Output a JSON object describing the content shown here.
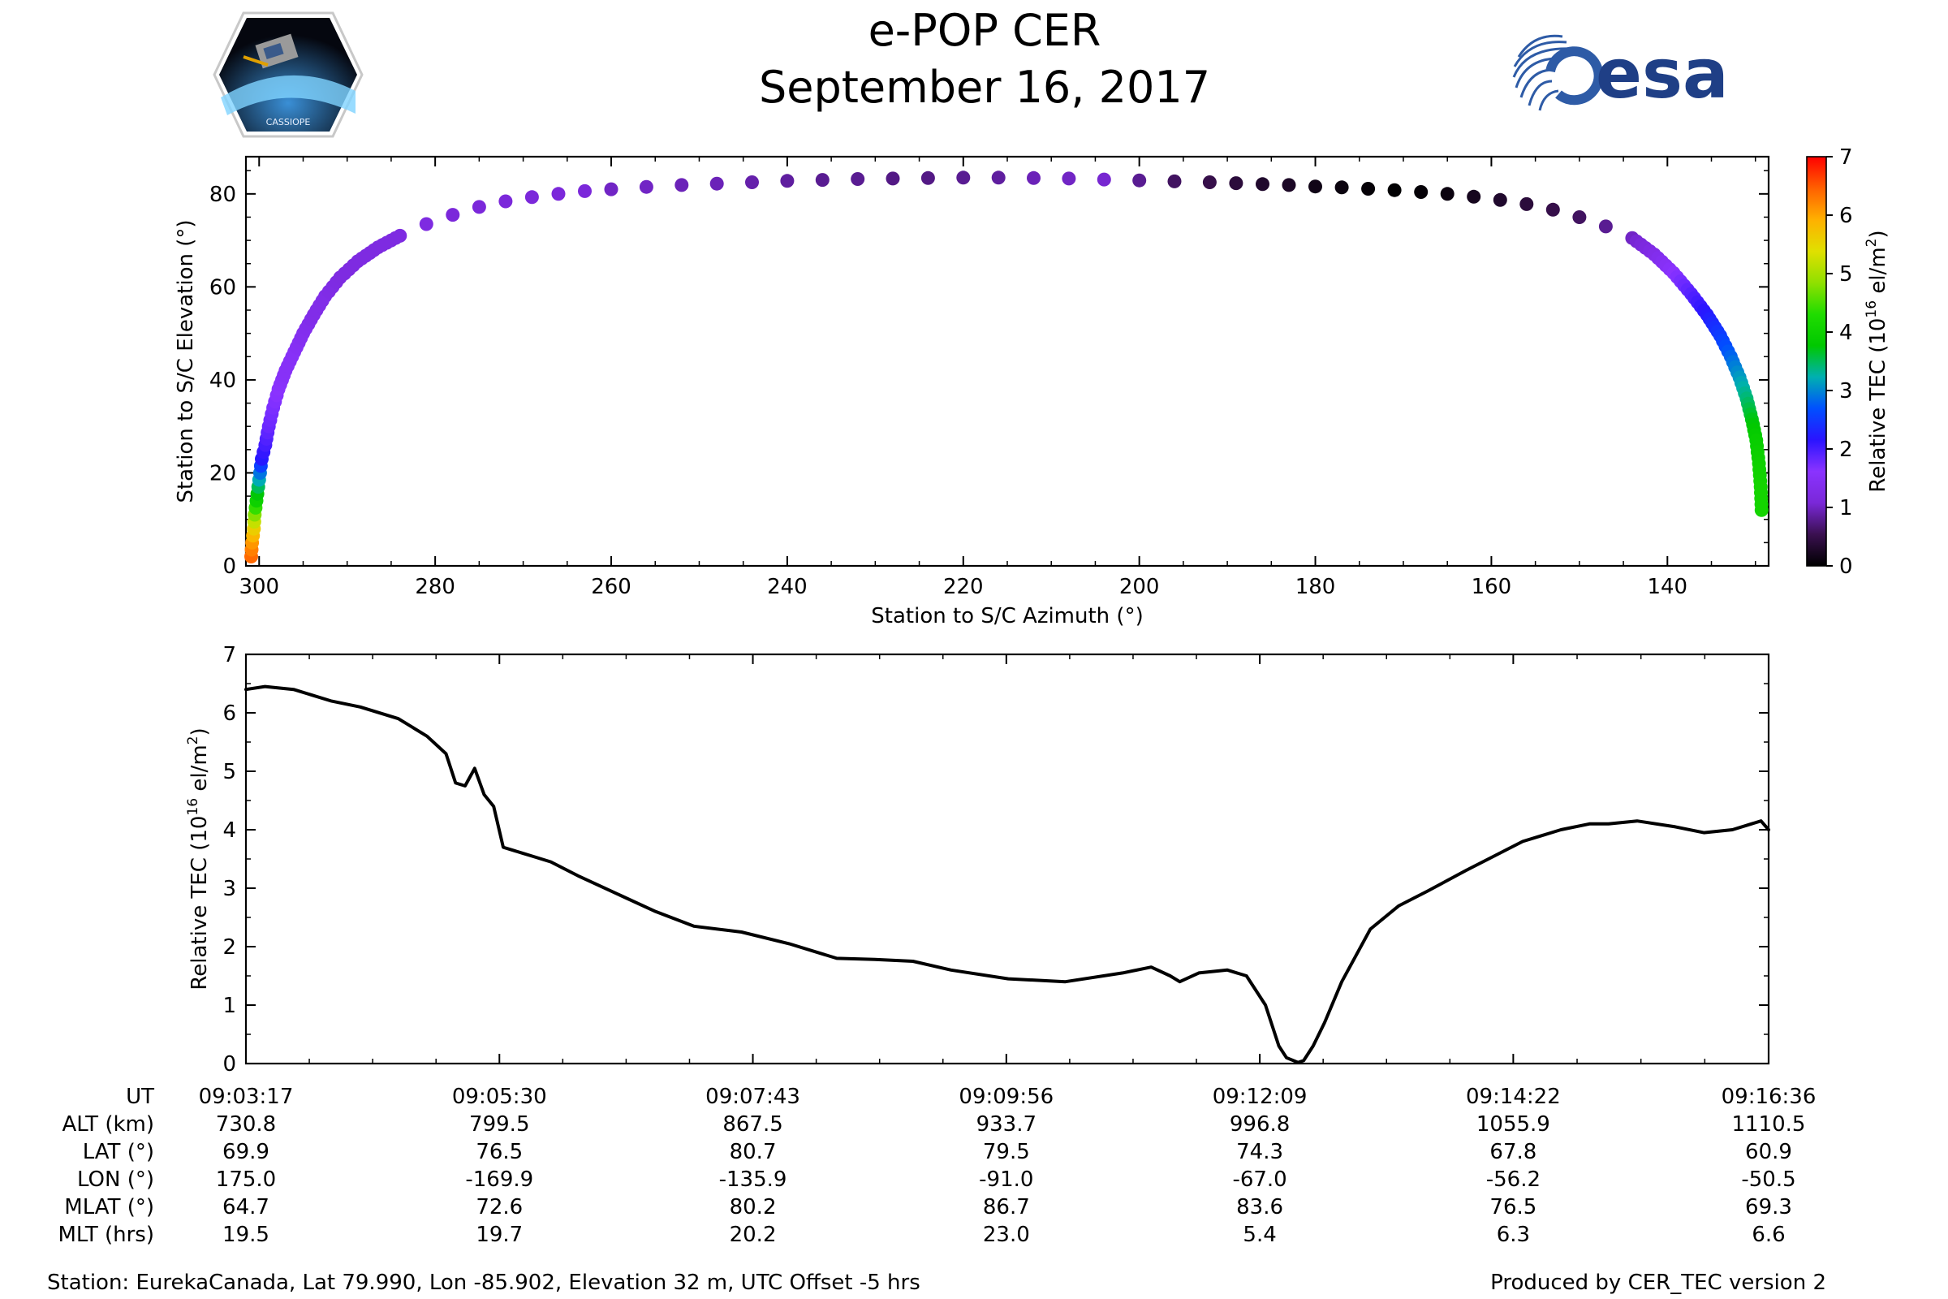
{
  "header": {
    "title_line1": "e-POP CER",
    "title_line2": "September 16, 2017",
    "left_logo_text": "CASSIOPE",
    "right_logo_text": "esa"
  },
  "chart_data": [
    {
      "type": "scatter",
      "name": "azimuth-elevation",
      "xlabel": "Station to S/C Azimuth (°)",
      "ylabel": "Station to S/C Elevation (°)",
      "xlim": [
        301.5,
        128.5
      ],
      "ylim": [
        0,
        88
      ],
      "xticks": [
        300,
        280,
        260,
        240,
        220,
        200,
        180,
        160,
        140
      ],
      "yticks": [
        0,
        20,
        40,
        60,
        80
      ],
      "colorbar": {
        "label_prefix": "Relative TEC (10",
        "label_exp": "16",
        "label_suffix": " el/m",
        "label_sq": "2",
        "label_end": ")",
        "min": 0,
        "max": 7,
        "ticks": [
          0,
          1,
          2,
          3,
          4,
          5,
          6,
          7
        ],
        "colormap": [
          "#000000",
          "#3a1050",
          "#7a28d8",
          "#8a33ff",
          "#2a14ff",
          "#0050ff",
          "#00b0b0",
          "#00c800",
          "#20dc00",
          "#90e000",
          "#e0e000",
          "#ffb000",
          "#ff6000",
          "#ff0000"
        ]
      },
      "points": [
        [
          300.9,
          2,
          6.4
        ],
        [
          300.8,
          5,
          6.1
        ],
        [
          300.6,
          8,
          5.6
        ],
        [
          300.5,
          11,
          4.8
        ],
        [
          300.3,
          14,
          4.0
        ],
        [
          300.1,
          17,
          3.5
        ],
        [
          299.9,
          20,
          2.9
        ],
        [
          299.7,
          23,
          2.2
        ],
        [
          299.3,
          26,
          2.0
        ],
        [
          298.9,
          30,
          1.8
        ],
        [
          298.4,
          34,
          1.7
        ],
        [
          297.8,
          38,
          1.6
        ],
        [
          297.0,
          42,
          1.5
        ],
        [
          296.0,
          46,
          1.5
        ],
        [
          295.0,
          50,
          1.4
        ],
        [
          293.8,
          54,
          1.3
        ],
        [
          292.5,
          58,
          1.3
        ],
        [
          290.8,
          62,
          1.2
        ],
        [
          288.8,
          65.5,
          1.2
        ],
        [
          286.5,
          68.5,
          1.2
        ],
        [
          284.0,
          71,
          1.2
        ],
        [
          281.0,
          73.5,
          1.2
        ],
        [
          278.0,
          75.5,
          1.1
        ],
        [
          275.0,
          77.2,
          1.1
        ],
        [
          272.0,
          78.4,
          1.1
        ],
        [
          269.0,
          79.3,
          1.1
        ],
        [
          266.0,
          80.0,
          1.1
        ],
        [
          263.0,
          80.6,
          1.1
        ],
        [
          260.0,
          81.0,
          1.0
        ],
        [
          256.0,
          81.5,
          1.0
        ],
        [
          252.0,
          81.9,
          0.95
        ],
        [
          248.0,
          82.2,
          0.95
        ],
        [
          244.0,
          82.5,
          0.9
        ],
        [
          240.0,
          82.8,
          0.85
        ],
        [
          236.0,
          83.0,
          0.8
        ],
        [
          232.0,
          83.2,
          0.8
        ],
        [
          228.0,
          83.3,
          0.75
        ],
        [
          224.0,
          83.4,
          0.75
        ],
        [
          220.0,
          83.5,
          0.8
        ],
        [
          216.0,
          83.5,
          0.85
        ],
        [
          212.0,
          83.4,
          0.95
        ],
        [
          208.0,
          83.3,
          1.0
        ],
        [
          204.0,
          83.1,
          1.05
        ],
        [
          200.0,
          82.9,
          0.8
        ],
        [
          196.0,
          82.7,
          0.6
        ],
        [
          192.0,
          82.5,
          0.5
        ],
        [
          189.0,
          82.3,
          0.4
        ],
        [
          186.0,
          82.1,
          0.3
        ],
        [
          183.0,
          81.9,
          0.25
        ],
        [
          180.0,
          81.6,
          0.15
        ],
        [
          177.0,
          81.4,
          0.1
        ],
        [
          174.0,
          81.1,
          0.05
        ],
        [
          171.0,
          80.8,
          0.02
        ],
        [
          168.0,
          80.4,
          0.05
        ],
        [
          165.0,
          80.0,
          0.1
        ],
        [
          162.0,
          79.4,
          0.2
        ],
        [
          159.0,
          78.7,
          0.3
        ],
        [
          156.0,
          77.8,
          0.4
        ],
        [
          153.0,
          76.6,
          0.5
        ],
        [
          150.0,
          75.0,
          0.6
        ],
        [
          147.0,
          73.0,
          0.8
        ],
        [
          144.0,
          70.5,
          1.0
        ],
        [
          141.5,
          67.0,
          1.3
        ],
        [
          139.3,
          63.0,
          1.6
        ],
        [
          137.3,
          58.5,
          1.9
        ],
        [
          135.5,
          54.0,
          2.2
        ],
        [
          134.0,
          49.5,
          2.5
        ],
        [
          132.8,
          45.0,
          2.8
        ],
        [
          131.8,
          40.5,
          3.1
        ],
        [
          131.0,
          36.0,
          3.4
        ],
        [
          130.4,
          31.5,
          3.7
        ],
        [
          129.9,
          27.0,
          3.9
        ],
        [
          129.6,
          22.0,
          4.0
        ],
        [
          129.4,
          17.0,
          4.1
        ],
        [
          129.3,
          12.0,
          4.1
        ]
      ]
    },
    {
      "type": "line",
      "name": "relative-tec-time-series",
      "xlabel": "",
      "ylabel_prefix": "Relative TEC (10",
      "ylabel_exp": "16",
      "ylabel_suffix": " el/m",
      "ylabel_sq": "2",
      "ylabel_end": ")",
      "x_unit": "seconds since 09:03:17",
      "xlim": [
        0,
        799
      ],
      "ylim": [
        0,
        7
      ],
      "yticks": [
        0,
        1,
        2,
        3,
        4,
        5,
        6,
        7
      ],
      "xticks": [
        0,
        133,
        266,
        399,
        532,
        665,
        799
      ],
      "x": [
        0,
        10,
        25,
        45,
        60,
        80,
        95,
        105,
        110,
        115,
        120,
        125,
        130,
        135,
        140,
        145,
        150,
        160,
        175,
        195,
        215,
        235,
        260,
        285,
        300,
        310,
        330,
        350,
        370,
        400,
        430,
        460,
        475,
        485,
        490,
        500,
        515,
        525,
        535,
        542,
        546,
        552,
        555,
        560,
        566,
        575,
        590,
        605,
        620,
        640,
        655,
        670,
        690,
        705,
        715,
        730,
        750,
        765,
        780,
        795,
        799
      ],
      "y": [
        6.4,
        6.45,
        6.4,
        6.2,
        6.1,
        5.9,
        5.6,
        5.3,
        4.8,
        4.75,
        5.05,
        4.6,
        4.4,
        3.7,
        3.65,
        3.6,
        3.55,
        3.45,
        3.2,
        2.9,
        2.6,
        2.35,
        2.25,
        2.05,
        1.9,
        1.8,
        1.78,
        1.75,
        1.6,
        1.45,
        1.4,
        1.55,
        1.65,
        1.5,
        1.4,
        1.55,
        1.6,
        1.5,
        1.0,
        0.3,
        0.1,
        0.02,
        0.05,
        0.3,
        0.7,
        1.4,
        2.3,
        2.7,
        2.95,
        3.3,
        3.55,
        3.8,
        4.0,
        4.1,
        4.1,
        4.15,
        4.05,
        3.95,
        4.0,
        4.15,
        4.0
      ]
    }
  ],
  "table": {
    "row_labels": [
      "UT",
      "ALT (km)",
      "LAT (°)",
      "LON (°)",
      "MLAT (°)",
      "MLT (hrs)"
    ],
    "columns": [
      [
        "09:03:17",
        "730.8",
        "69.9",
        "175.0",
        "64.7",
        "19.5"
      ],
      [
        "09:05:30",
        "799.5",
        "76.5",
        "-169.9",
        "72.6",
        "19.7"
      ],
      [
        "09:07:43",
        "867.5",
        "80.7",
        "-135.9",
        "80.2",
        "20.2"
      ],
      [
        "09:09:56",
        "933.7",
        "79.5",
        "-91.0",
        "86.7",
        "23.0"
      ],
      [
        "09:12:09",
        "996.8",
        "74.3",
        "-67.0",
        "83.6",
        "5.4"
      ],
      [
        "09:14:22",
        "1055.9",
        "67.8",
        "-56.2",
        "76.5",
        "6.3"
      ],
      [
        "09:16:36",
        "1110.5",
        "60.9",
        "-50.5",
        "69.3",
        "6.6"
      ]
    ]
  },
  "footer": {
    "station": "Station: EurekaCanada, Lat 79.990, Lon -85.902, Elevation 32 m, UTC Offset -5 hrs",
    "produced_by": "Produced by CER_TEC version 2"
  }
}
